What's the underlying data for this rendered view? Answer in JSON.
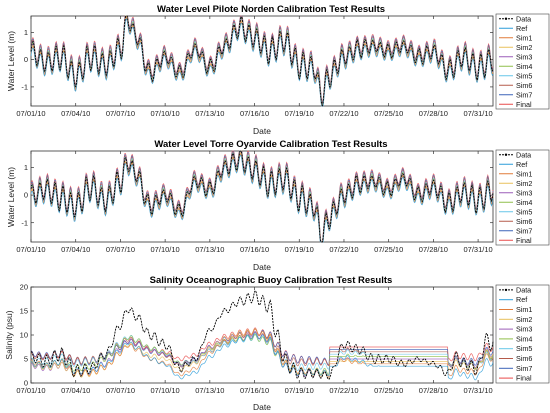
{
  "chart_data": [
    {
      "type": "line",
      "title": "Water Level Pilote Norden Calibration Test Results",
      "xlabel": "Date",
      "ylabel": "Water Level (m)",
      "ylim": [
        -1.7,
        1.6
      ],
      "yticks": [
        -1,
        0,
        1
      ],
      "xlim_days": [
        0,
        31
      ],
      "xtick_labels": [
        "07/01/10",
        "07/04/10",
        "07/07/10",
        "07/10/10",
        "07/13/10",
        "07/16/10",
        "07/19/10",
        "07/22/10",
        "07/25/10",
        "07/28/10",
        "07/31/10"
      ],
      "legend": [
        "Data",
        "Ref",
        "Sim1",
        "Sim2",
        "Sim3",
        "Sim4",
        "Sim5",
        "Sim6",
        "Sim7",
        "Final"
      ],
      "legend_location": "right",
      "series_data_points": [
        [
          0,
          0.3
        ],
        [
          1,
          -0.1
        ],
        [
          2,
          0.1
        ],
        [
          3,
          -0.6
        ],
        [
          4,
          0.1
        ],
        [
          5,
          -0.2
        ],
        [
          6,
          0.4
        ],
        [
          6.5,
          1.5
        ],
        [
          7,
          0.9
        ],
        [
          8,
          -0.5
        ],
        [
          9,
          0.1
        ],
        [
          10,
          -0.5
        ],
        [
          11,
          0.4
        ],
        [
          12,
          -0.3
        ],
        [
          13,
          0.5
        ],
        [
          14,
          1.2
        ],
        [
          15,
          0.8
        ],
        [
          16,
          0.3
        ],
        [
          17,
          0.7
        ],
        [
          18,
          -0.2
        ],
        [
          19,
          -0.3
        ],
        [
          19.5,
          -1.3
        ],
        [
          20,
          -0.6
        ],
        [
          21,
          0.1
        ],
        [
          22,
          0.4
        ],
        [
          23,
          0.5
        ],
        [
          24,
          0.3
        ],
        [
          25,
          0.5
        ],
        [
          26,
          0.1
        ],
        [
          27,
          0.3
        ],
        [
          28,
          -0.4
        ],
        [
          29,
          0.1
        ],
        [
          30,
          -0.3
        ],
        [
          31,
          0.0
        ]
      ]
    },
    {
      "type": "line",
      "title": "Water Level Torre Oyarvide Calibration Test Results",
      "xlabel": "Date",
      "ylabel": "Water Level (m)",
      "ylim": [
        -1.7,
        1.6
      ],
      "yticks": [
        -1,
        0,
        1
      ],
      "xlim_days": [
        0,
        31
      ],
      "xtick_labels": [
        "07/01/10",
        "07/04/10",
        "07/07/10",
        "07/10/10",
        "07/13/10",
        "07/16/10",
        "07/19/10",
        "07/22/10",
        "07/25/10",
        "07/28/10",
        "07/31/10"
      ],
      "legend": [
        "Data",
        "Ref",
        "Sim1",
        "Sim2",
        "Sim3",
        "Sim4",
        "Sim5",
        "Sim6",
        "Sim7",
        "Final"
      ],
      "legend_location": "right",
      "series_data_points": [
        [
          0,
          0.0
        ],
        [
          1,
          0.2
        ],
        [
          2,
          -0.1
        ],
        [
          3,
          -0.4
        ],
        [
          4,
          0.3
        ],
        [
          5,
          -0.2
        ],
        [
          6,
          0.5
        ],
        [
          6.5,
          1.2
        ],
        [
          7,
          0.8
        ],
        [
          8,
          -0.4
        ],
        [
          9,
          0.0
        ],
        [
          10,
          -0.6
        ],
        [
          11,
          0.5
        ],
        [
          12,
          0.2
        ],
        [
          13,
          1.0
        ],
        [
          14,
          1.3
        ],
        [
          15,
          0.9
        ],
        [
          16,
          0.4
        ],
        [
          17,
          0.6
        ],
        [
          18,
          -0.1
        ],
        [
          19,
          -0.4
        ],
        [
          19.5,
          -1.5
        ],
        [
          20,
          -0.8
        ],
        [
          21,
          0.0
        ],
        [
          22,
          0.4
        ],
        [
          23,
          0.5
        ],
        [
          24,
          0.2
        ],
        [
          25,
          0.6
        ],
        [
          26,
          0.0
        ],
        [
          27,
          0.3
        ],
        [
          28,
          -0.3
        ],
        [
          29,
          0.1
        ],
        [
          30,
          -0.2
        ],
        [
          31,
          0.2
        ]
      ]
    },
    {
      "type": "line",
      "title": "Salinity Oceanographic Buoy Calibration Test Results",
      "xlabel": "Date",
      "ylabel": "Salinity (psu)",
      "ylim": [
        0,
        20
      ],
      "yticks": [
        0,
        5,
        10,
        15,
        20
      ],
      "xlim_days": [
        0,
        31
      ],
      "xtick_labels": [
        "07/01/10",
        "07/04/10",
        "07/07/10",
        "07/10/10",
        "07/13/10",
        "07/16/10",
        "07/19/10",
        "07/22/10",
        "07/25/10",
        "07/28/10",
        "07/31/10"
      ],
      "legend": [
        "Data",
        "Ref",
        "Sim1",
        "Sim2",
        "Sim3",
        "Sim4",
        "Sim5",
        "Sim6",
        "Sim7",
        "Final"
      ],
      "legend_location": "right",
      "series_data_points": [
        [
          0,
          5.5
        ],
        [
          1,
          4.5
        ],
        [
          2,
          6
        ],
        [
          3,
          2.5
        ],
        [
          4,
          3
        ],
        [
          5,
          6
        ],
        [
          6,
          12
        ],
        [
          6.5,
          15.5
        ],
        [
          7,
          14
        ],
        [
          8,
          10
        ],
        [
          9,
          8
        ],
        [
          10,
          3
        ],
        [
          11,
          5
        ],
        [
          12,
          11
        ],
        [
          13,
          15
        ],
        [
          14,
          17
        ],
        [
          15,
          18
        ],
        [
          16,
          16
        ],
        [
          16.5,
          10
        ],
        [
          17,
          5
        ],
        [
          17.5,
          3
        ],
        [
          18,
          2
        ],
        [
          19,
          2
        ],
        [
          20,
          1.5
        ],
        [
          21,
          8
        ],
        [
          22,
          7
        ],
        [
          23,
          5
        ],
        [
          24,
          5
        ],
        [
          25,
          4
        ],
        [
          26,
          5
        ],
        [
          27,
          4
        ],
        [
          28,
          2
        ],
        [
          28.5,
          5.5
        ],
        [
          29,
          4
        ],
        [
          30,
          3
        ],
        [
          30.5,
          9
        ],
        [
          31,
          8
        ]
      ]
    }
  ],
  "colors": {
    "Data": "#000000",
    "Ref": "#2b9cd8",
    "Sim1": "#e07b39",
    "Sim2": "#e8c05a",
    "Sim3": "#9b5cb8",
    "Sim4": "#8fbf4a",
    "Sim5": "#66c6e8",
    "Sim6": "#b55a4a",
    "Sim7": "#3a62b8",
    "Final": "#e84a4a"
  }
}
